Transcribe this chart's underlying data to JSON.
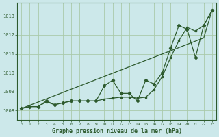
{
  "title": "Graphe pression niveau de la mer (hPa)",
  "background_color": "#cce8ea",
  "grid_color": "#aacaaa",
  "line_color": "#2d5a2d",
  "xlim": [
    -0.5,
    23.5
  ],
  "ylim": [
    1007.5,
    1013.7
  ],
  "yticks": [
    1008,
    1009,
    1010,
    1011,
    1012,
    1013
  ],
  "xticks": [
    0,
    1,
    2,
    3,
    4,
    5,
    6,
    7,
    8,
    9,
    10,
    11,
    12,
    13,
    14,
    15,
    16,
    17,
    18,
    19,
    20,
    21,
    22,
    23
  ],
  "series_detail": [
    1008.1,
    1008.2,
    1008.2,
    1008.5,
    1008.3,
    1008.4,
    1008.5,
    1008.5,
    1008.5,
    1008.5,
    1009.3,
    1009.6,
    1008.9,
    1008.9,
    1008.5,
    1009.6,
    1009.4,
    1010.0,
    1011.3,
    1012.5,
    1012.3,
    1010.8,
    1012.5,
    1013.3
  ],
  "series_smooth": [
    1008.1,
    1008.2,
    1008.2,
    1008.45,
    1008.3,
    1008.4,
    1008.5,
    1008.5,
    1008.5,
    1008.5,
    1008.6,
    1008.65,
    1008.7,
    1008.7,
    1008.65,
    1008.7,
    1009.1,
    1009.8,
    1010.8,
    1011.7,
    1012.4,
    1012.2,
    1012.5,
    1013.3
  ],
  "series_linear": [
    1008.1,
    1008.27,
    1008.44,
    1008.61,
    1008.78,
    1008.95,
    1009.12,
    1009.29,
    1009.46,
    1009.63,
    1009.8,
    1009.97,
    1010.14,
    1010.31,
    1010.48,
    1010.65,
    1010.82,
    1010.99,
    1011.16,
    1011.33,
    1011.5,
    1011.67,
    1011.84,
    1013.3
  ],
  "font_family": "monospace"
}
